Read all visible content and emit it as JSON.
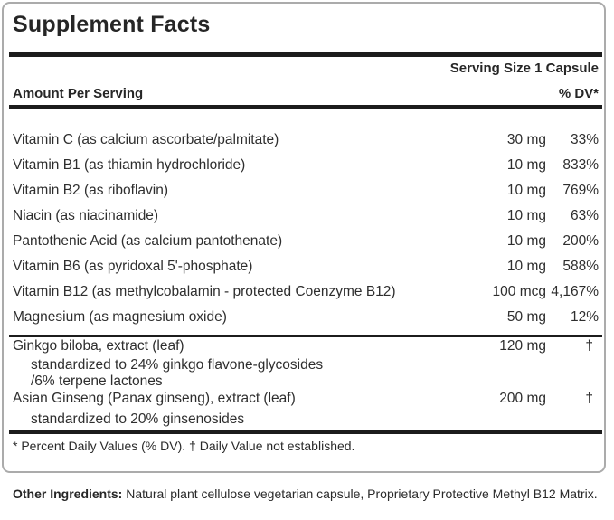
{
  "colors": {
    "rule": "#1c1c1c",
    "border": "#ababab",
    "text": "#2e2e2e"
  },
  "panel": {
    "title": "Supplement Facts",
    "serving_size": "Serving Size 1 Capsule",
    "col_amount_header": "Amount Per Serving",
    "col_dv_header": "% DV*",
    "rows": [
      {
        "label": "Vitamin C (as calcium ascorbate/palmitate)",
        "amount": "30 mg",
        "dv": "33%"
      },
      {
        "label": "Vitamin B1 (as thiamin hydrochloride)",
        "amount": "10 mg",
        "dv": "833%"
      },
      {
        "label": "Vitamin B2 (as riboflavin)",
        "amount": "10 mg",
        "dv": "769%"
      },
      {
        "label": "Niacin (as niacinamide)",
        "amount": "10 mg",
        "dv": "63%"
      },
      {
        "label": "Pantothenic Acid (as calcium pantothenate)",
        "amount": "10 mg",
        "dv": "200%"
      },
      {
        "label": "Vitamin B6 (as pyridoxal 5'-phosphate)",
        "amount": "10 mg",
        "dv": "588%"
      },
      {
        "label": "Vitamin B12 (as methylcobalamin - protected Coenzyme B12)",
        "amount": "100 mcg",
        "dv": "4,167%"
      },
      {
        "label": "Magnesium (as magnesium oxide)",
        "amount": "50 mg",
        "dv": "12%"
      }
    ],
    "botanicals": [
      {
        "label": "Ginkgo biloba, extract (leaf)",
        "amount": "120 mg",
        "dv": "†",
        "sub1": "standardized to 24% ginkgo flavone-glycosides",
        "sub2": "/6% terpene lactones"
      },
      {
        "label": "Asian Ginseng (Panax ginseng), extract (leaf)",
        "amount": "200 mg",
        "dv": "†",
        "sub1": "standardized to 20% ginsenosides"
      }
    ],
    "footnote": "* Percent Daily Values (% DV). † Daily Value not established."
  },
  "other_ingredients": {
    "label": "Other Ingredients:",
    "text": "Natural plant cellulose vegetarian capsule, Proprietary Protective Methyl B12 Matrix."
  }
}
